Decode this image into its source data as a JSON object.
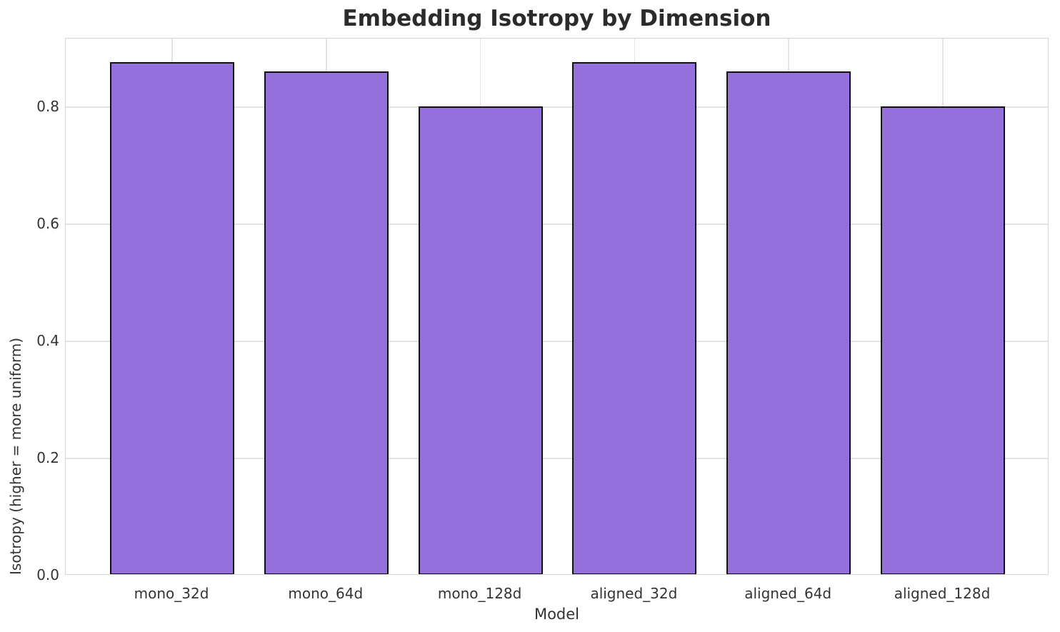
{
  "chart_data": {
    "type": "bar",
    "title": "Embedding Isotropy by Dimension",
    "xlabel": "Model",
    "ylabel": "Isotropy (higher = more uniform)",
    "categories": [
      "mono_32d",
      "mono_64d",
      "mono_128d",
      "aligned_32d",
      "aligned_64d",
      "aligned_128d"
    ],
    "values": [
      0.875,
      0.86,
      0.8,
      0.875,
      0.86,
      0.8
    ],
    "ytick_labels": [
      "0.0",
      "0.2",
      "0.4",
      "0.6",
      "0.8"
    ],
    "ytick_values": [
      0.0,
      0.2,
      0.4,
      0.6,
      0.8
    ],
    "ylim": [
      0,
      0.917
    ],
    "grid": "on",
    "legend": "none",
    "colors": {
      "bar_fill": "#9370DB",
      "bar_edge": "#111111",
      "grid": "#e2e2e2",
      "spine": "#d4d4d4",
      "tick_text": "#333333",
      "title_text": "#2b2b2b"
    }
  }
}
